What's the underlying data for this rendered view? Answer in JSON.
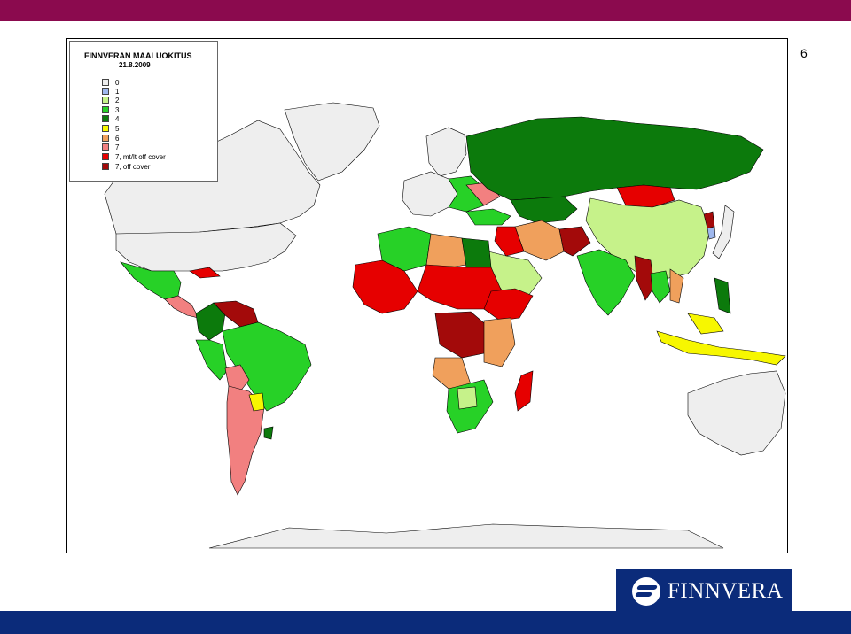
{
  "slide": {
    "page_number": "6"
  },
  "legend": {
    "title": "FINNVERAN MAALUOKITUS",
    "date": "21.8.2009",
    "items": [
      {
        "label": "0",
        "color": "#eeeeee"
      },
      {
        "label": "1",
        "color": "#9fb8ee"
      },
      {
        "label": "2",
        "color": "#c6f28a"
      },
      {
        "label": "3",
        "color": "#27d127"
      },
      {
        "label": "4",
        "color": "#0c7a0c"
      },
      {
        "label": "5",
        "color": "#f7f700"
      },
      {
        "label": "6",
        "color": "#f0a05c"
      },
      {
        "label": "7",
        "color": "#f28080"
      },
      {
        "label": "7, mt/lt off cover",
        "color": "#e60000"
      },
      {
        "label": "7, off cover",
        "color": "#a30a0a"
      }
    ]
  },
  "logo": {
    "text": "FINNVERA"
  },
  "colors": {
    "top_bar": "#8b0a4e",
    "bottom_bar": "#0b2b7a",
    "ocean": "#ffffff",
    "land_unrated": "#eeeeee"
  }
}
